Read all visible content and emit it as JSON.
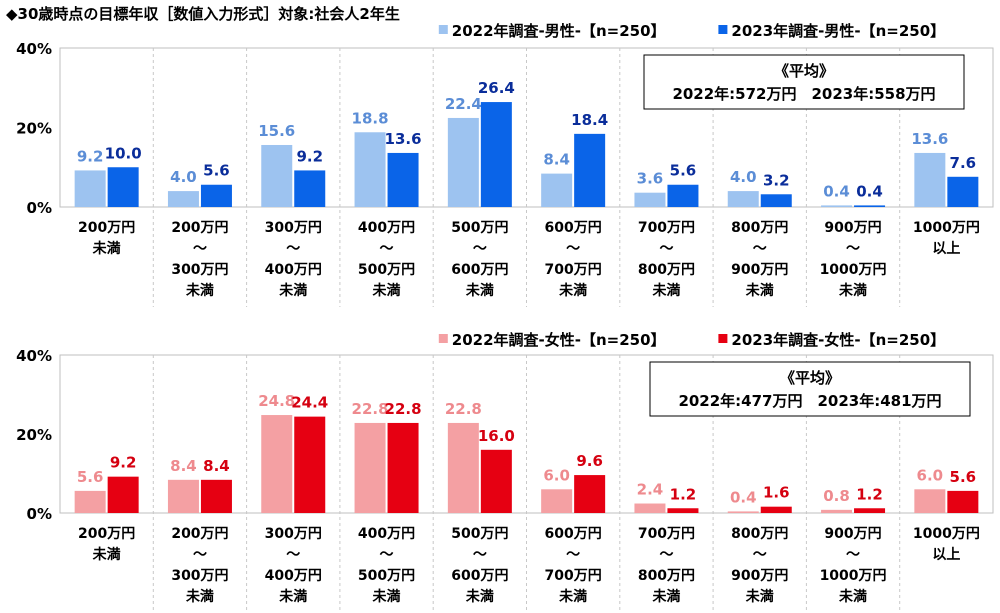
{
  "title": "◆30歳時点の目標年収［数値入力形式］対象:社会人2年生",
  "chart_data": [
    {
      "type": "bar",
      "categories": [
        [
          "200万円",
          "未満"
        ],
        [
          "200万円",
          "〜",
          "300万円",
          "未満"
        ],
        [
          "300万円",
          "〜",
          "400万円",
          "未満"
        ],
        [
          "400万円",
          "〜",
          "500万円",
          "未満"
        ],
        [
          "500万円",
          "〜",
          "600万円",
          "未満"
        ],
        [
          "600万円",
          "〜",
          "700万円",
          "未満"
        ],
        [
          "700万円",
          "〜",
          "800万円",
          "未満"
        ],
        [
          "800万円",
          "〜",
          "900万円",
          "未満"
        ],
        [
          "900万円",
          "〜",
          "1000万円",
          "未満"
        ],
        [
          "1000万円",
          "以上"
        ]
      ],
      "ylim": [
        0,
        40
      ],
      "yticks": [
        "0%",
        "20%",
        "40%"
      ],
      "ytick_values": [
        0,
        20,
        40
      ],
      "series": [
        {
          "name": "2022年調査-男性-【n=250】",
          "color": "#9DC3F0",
          "label_color": "#5B8DD6",
          "values": [
            9.2,
            4.0,
            15.6,
            18.8,
            22.4,
            8.4,
            3.6,
            4.0,
            0.4,
            13.6
          ]
        },
        {
          "name": "2023年調査-男性-【n=250】",
          "color": "#0A64E8",
          "label_color": "#0A2D9A",
          "values": [
            10.0,
            5.6,
            9.2,
            13.6,
            26.4,
            18.4,
            5.6,
            3.2,
            0.4,
            7.6
          ]
        }
      ],
      "average_box": {
        "heading": "《平均》",
        "text": "2022年:572万円　2023年:558万円"
      }
    },
    {
      "type": "bar",
      "categories": [
        [
          "200万円",
          "未満"
        ],
        [
          "200万円",
          "〜",
          "300万円",
          "未満"
        ],
        [
          "300万円",
          "〜",
          "400万円",
          "未満"
        ],
        [
          "400万円",
          "〜",
          "500万円",
          "未満"
        ],
        [
          "500万円",
          "〜",
          "600万円",
          "未満"
        ],
        [
          "600万円",
          "〜",
          "700万円",
          "未満"
        ],
        [
          "700万円",
          "〜",
          "800万円",
          "未満"
        ],
        [
          "800万円",
          "〜",
          "900万円",
          "未満"
        ],
        [
          "900万円",
          "〜",
          "1000万円",
          "未満"
        ],
        [
          "1000万円",
          "以上"
        ]
      ],
      "ylim": [
        0,
        40
      ],
      "yticks": [
        "0%",
        "20%",
        "40%"
      ],
      "ytick_values": [
        0,
        20,
        40
      ],
      "series": [
        {
          "name": "2022年調査-女性-【n=250】",
          "color": "#F4A0A3",
          "label_color": "#EE8A8E",
          "values": [
            5.6,
            8.4,
            24.8,
            22.8,
            22.8,
            6.0,
            2.4,
            0.4,
            0.8,
            6.0
          ]
        },
        {
          "name": "2023年調査-女性-【n=250】",
          "color": "#E60012",
          "label_color": "#D50010",
          "values": [
            9.2,
            8.4,
            24.4,
            22.8,
            16.0,
            9.6,
            1.2,
            1.6,
            1.2,
            5.6
          ]
        }
      ],
      "average_box": {
        "heading": "《平均》",
        "text": "2022年:477万円　2023年:481万円"
      }
    }
  ]
}
